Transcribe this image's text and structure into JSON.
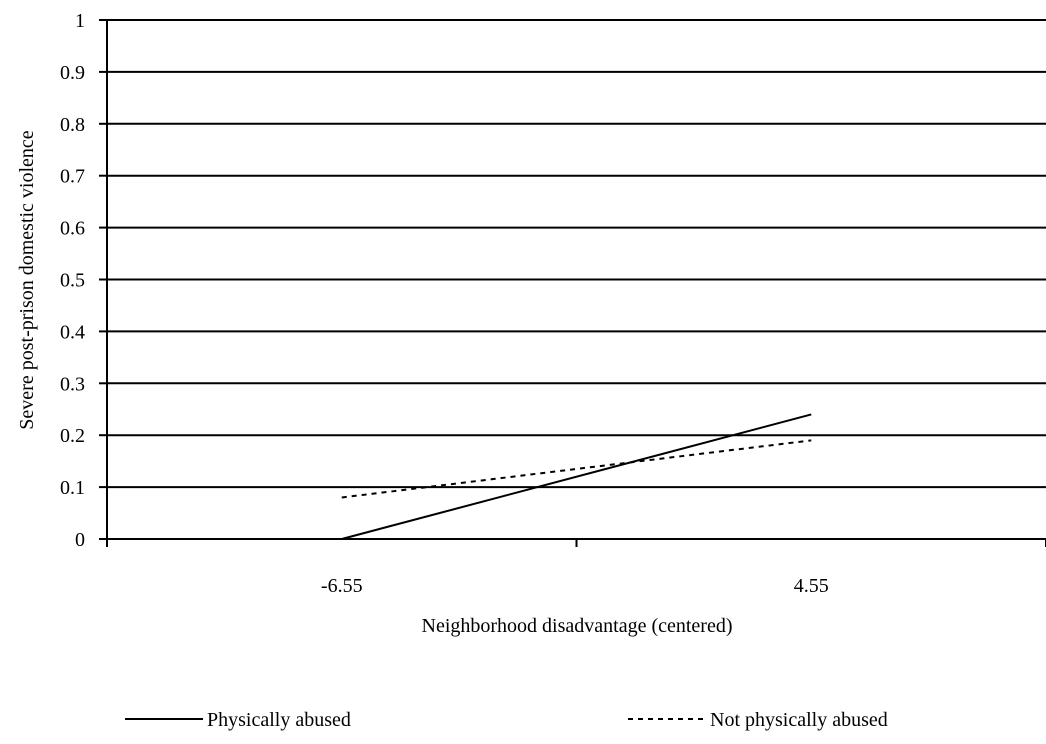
{
  "chart_data": {
    "type": "line",
    "title": "",
    "xlabel": "Neighborhood disadvantage (centered)",
    "ylabel": "Severe post-prison domestic violence",
    "categories": [
      "-6.55",
      "4.55"
    ],
    "ylim": [
      0,
      1
    ],
    "yticks": [
      "0",
      "0.1",
      "0.2",
      "0.3",
      "0.4",
      "0.5",
      "0.6",
      "0.7",
      "0.8",
      "0.9",
      "1"
    ],
    "grid": "horizontal",
    "legend_position": "bottom",
    "series": [
      {
        "name": "Physically abused",
        "values": [
          0.0,
          0.24
        ],
        "style": "solid"
      },
      {
        "name": "Not physically abused",
        "values": [
          0.08,
          0.19
        ],
        "style": "dashed"
      }
    ]
  }
}
